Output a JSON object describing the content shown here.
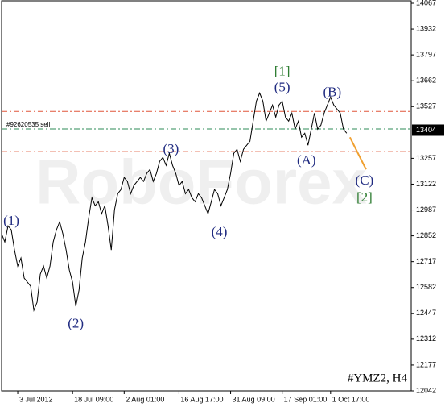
{
  "chart_data": {
    "type": "line",
    "watermark": "RoboForex",
    "symbol_note": "#YMZ2, H4",
    "xlim": [
      0,
      127
    ],
    "ylim": [
      12042,
      14067
    ],
    "xticks": [
      {
        "value": 5,
        "label": "3 Jul 2012"
      },
      {
        "value": 22,
        "label": "18 Jul 09:00"
      },
      {
        "value": 38,
        "label": "2 Aug 01:00"
      },
      {
        "value": 55,
        "label": "16 Aug 17:00"
      },
      {
        "value": 71,
        "label": "31 Aug 09:00"
      },
      {
        "value": 87,
        "label": "17 Sep 01:00"
      },
      {
        "value": 102,
        "label": "1 Oct 17:00"
      }
    ],
    "yticks": [
      12042,
      12177,
      12312,
      12447,
      12582,
      12717,
      12852,
      12987,
      13122,
      13257,
      13527,
      13662,
      13797,
      13932,
      14067
    ],
    "series": [
      {
        "color": "#000000",
        "values": [
          12862,
          12820,
          12904,
          12883,
          12778,
          12694,
          12736,
          12631,
          12610,
          12589,
          12463,
          12505,
          12652,
          12694,
          12631,
          12694,
          12820,
          12883,
          12925,
          12862,
          12778,
          12673,
          12610,
          12484,
          12568,
          12736,
          12820,
          12946,
          13051,
          13009,
          13030,
          12967,
          13009,
          12904,
          12778,
          12988,
          13072,
          13094,
          13157,
          13136,
          13072,
          13115,
          13136,
          13157,
          13136,
          13178,
          13199,
          13136,
          13178,
          13241,
          13262,
          13220,
          13283,
          13220,
          13178,
          13115,
          13136,
          13072,
          13094,
          13051,
          13030,
          13072,
          13051,
          13009,
          12967,
          13030,
          13094,
          13072,
          13009,
          13051,
          13094,
          13178,
          13283,
          13304,
          13241,
          13304,
          13325,
          13346,
          13451,
          13556,
          13598,
          13556,
          13451,
          13493,
          13535,
          13472,
          13535,
          13556,
          13472,
          13451,
          13493,
          13409,
          13451,
          13367,
          13388,
          13325,
          13409,
          13493,
          13409,
          13430,
          13493,
          13535,
          13577,
          13535,
          13514,
          13493,
          13409,
          13388
        ]
      }
    ],
    "levels": [
      {
        "value": 13502,
        "color": "#e0573a"
      },
      {
        "value": 13410,
        "color": "#2e8b57",
        "label": "#92620535 sell"
      },
      {
        "value": 13292,
        "color": "#e0573a"
      }
    ],
    "last_price": 13404,
    "forecast": {
      "color": "#f0a030",
      "x": [
        108,
        113
      ],
      "values": [
        13367,
        13199
      ]
    },
    "annotations": [
      {
        "text": "(1)",
        "x": 3,
        "y": 12926,
        "color": "#1f2a80"
      },
      {
        "text": "(2)",
        "x": 23,
        "y": 12388,
        "color": "#1f2a80"
      },
      {
        "text": "(3)",
        "x": 52.5,
        "y": 13300,
        "color": "#1f2a80"
      },
      {
        "text": "(4)",
        "x": 67.5,
        "y": 12867,
        "color": "#1f2a80"
      },
      {
        "text": "(5)",
        "x": 87,
        "y": 13623,
        "color": "#1f2a80"
      },
      {
        "text": "[1]",
        "x": 87,
        "y": 13707,
        "color": "#2e7d32"
      },
      {
        "text": "(A)",
        "x": 94.5,
        "y": 13241,
        "color": "#1f2a80"
      },
      {
        "text": "(B)",
        "x": 102.5,
        "y": 13598,
        "color": "#1f2a80"
      },
      {
        "text": "(C)",
        "x": 112.5,
        "y": 13136,
        "color": "#1f2a80"
      },
      {
        "text": "[2]",
        "x": 112.5,
        "y": 13048,
        "color": "#2e7d32"
      }
    ]
  }
}
